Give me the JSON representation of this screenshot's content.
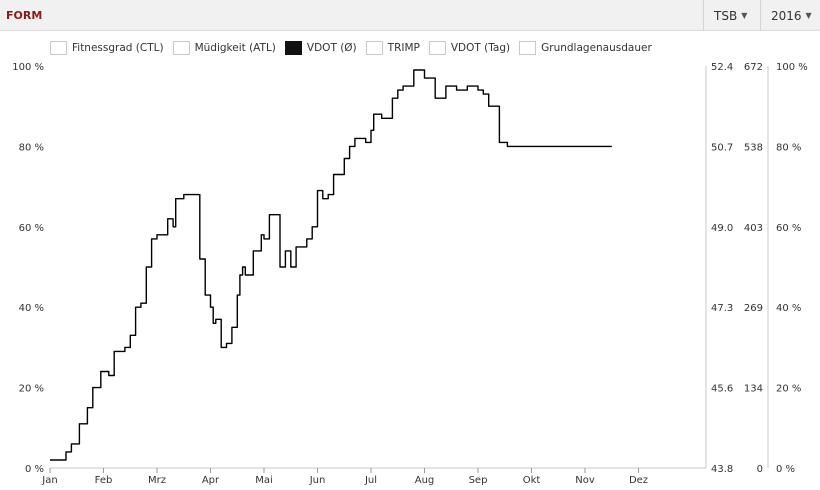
{
  "header": {
    "title": "FORM",
    "metric_select": "TSB",
    "year_select": "2016"
  },
  "legend": [
    {
      "label": "Fitnessgrad (CTL)",
      "active": false
    },
    {
      "label": "Müdigkeit (ATL)",
      "active": false
    },
    {
      "label": "VDOT (Ø)",
      "active": true
    },
    {
      "label": "TRIMP",
      "active": false
    },
    {
      "label": "VDOT (Tag)",
      "active": false
    },
    {
      "label": "Grundlagenausdauer",
      "active": false
    }
  ],
  "chart_data": {
    "type": "line",
    "title": "",
    "x_tick_labels": [
      "Jan",
      "Feb",
      "Mrz",
      "Apr",
      "Mai",
      "Jun",
      "Jul",
      "Aug",
      "Sep",
      "Okt",
      "Nov",
      "Dez"
    ],
    "y_left_ticks": [
      "0 %",
      "20 %",
      "40 %",
      "60 %",
      "80 %",
      "100 %"
    ],
    "y_right1_ticks": [
      "43.8",
      "45.6",
      "47.3",
      "49.0",
      "50.7",
      "52.4"
    ],
    "y_right2_ticks": [
      "0",
      "134",
      "269",
      "403",
      "538",
      "672"
    ],
    "y_right3_ticks": [
      "0 %",
      "20 %",
      "40 %",
      "60 %",
      "80 %",
      "100 %"
    ],
    "ylim": [
      0,
      100
    ],
    "grid": false,
    "series": [
      {
        "name": "VDOT (Ø)",
        "color": "#000000",
        "x": [
          0.0,
          0.3,
          0.4,
          0.55,
          0.7,
          0.8,
          0.95,
          1.1,
          1.2,
          1.4,
          1.5,
          1.6,
          1.7,
          1.8,
          1.9,
          2.0,
          2.2,
          2.3,
          2.35,
          2.5,
          2.7,
          2.8,
          2.9,
          3.0,
          3.05,
          3.1,
          3.2,
          3.3,
          3.4,
          3.5,
          3.55,
          3.6,
          3.65,
          3.8,
          3.95,
          4.0,
          4.1,
          4.2,
          4.3,
          4.4,
          4.5,
          4.6,
          4.7,
          4.8,
          4.9,
          5.0,
          5.1,
          5.2,
          5.3,
          5.5,
          5.6,
          5.7,
          5.9,
          6.0,
          6.05,
          6.2,
          6.4,
          6.5,
          6.6,
          6.8,
          7.0,
          7.2,
          7.4,
          7.6,
          7.8,
          8.0,
          8.1,
          8.2,
          8.4,
          8.55,
          8.7,
          9.0,
          9.2,
          9.4,
          9.6,
          9.8,
          10.0,
          10.1,
          10.15,
          10.2,
          10.3,
          10.5
        ],
        "values": [
          2,
          4,
          6,
          11,
          15,
          20,
          24,
          23,
          29,
          30,
          33,
          40,
          41,
          50,
          57,
          58,
          62,
          60,
          67,
          68,
          68,
          52,
          43,
          40,
          36,
          37,
          30,
          31,
          35,
          43,
          48,
          50,
          48,
          54,
          58,
          57,
          63,
          63,
          50,
          54,
          50,
          55,
          55,
          57,
          60,
          69,
          67,
          68,
          73,
          77,
          80,
          82,
          81,
          84,
          88,
          87,
          92,
          94,
          95,
          99,
          97,
          92,
          95,
          94,
          95,
          94,
          93,
          90,
          81,
          80,
          80,
          80,
          80,
          80,
          80,
          80,
          80,
          80,
          80,
          80,
          80,
          80
        ],
        "visible_x_max": 10.5
      }
    ]
  }
}
